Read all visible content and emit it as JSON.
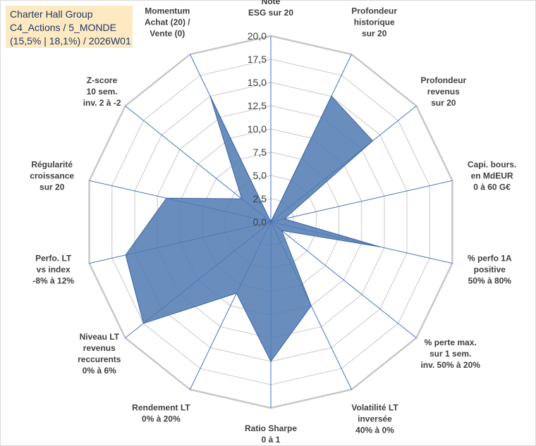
{
  "title_box": {
    "line1": "Charter Hall Group",
    "line2": "C4_Actions / 5_MONDE",
    "line3": "(15,5% | 18,1%) / 2026W01"
  },
  "chart_data": {
    "type": "radar",
    "r_range": [
      0,
      20
    ],
    "r_ticks": [
      "0,0",
      "2,5",
      "5,0",
      "7,5",
      "10,0",
      "12,5",
      "15,0",
      "17,5",
      "20,0"
    ],
    "axes": [
      [
        "Note",
        "ESG sur 20"
      ],
      [
        "Profondeur",
        "historique",
        "sur 20"
      ],
      [
        "Profondeur",
        "revenus",
        "sur 20"
      ],
      [
        "Capi. bours.",
        "en MdEUR",
        "0 à 60 G€"
      ],
      [
        "% perfo 1A",
        "positive",
        "50% à 80%"
      ],
      [
        "% perte max.",
        "sur 1 sem.",
        "inv. 50% à 20%"
      ],
      [
        "Volatilité LT",
        "inversée",
        "40% à 0%"
      ],
      [
        "Ratio Sharpe",
        "0 à 1"
      ],
      [
        "Rendement LT",
        "0% à 20%"
      ],
      [
        "Niveau LT",
        "revenus",
        "reccurents",
        "0% à 6%"
      ],
      [
        "Perfo. LT",
        "vs index",
        "-8% à 12%"
      ],
      [
        "Régularité",
        "croissance",
        "sur 20"
      ],
      [
        "Z-score",
        "10 sem.",
        "inv. 2 à -2"
      ],
      [
        "Momentum",
        "Achat (20) /",
        "Vente (0)"
      ]
    ],
    "series": [
      {
        "name": "Charter Hall Group",
        "values": [
          0,
          15,
          14,
          1.5,
          12,
          1.5,
          10,
          15,
          8.5,
          17.5,
          16,
          11.5,
          4,
          15
        ],
        "color": "#4f7ab3"
      }
    ],
    "colors": {
      "grid": "#c8c8c8",
      "spoke": "#4472c4",
      "fill": "#4f7ab3",
      "title_bg": "#fde9c2",
      "title_text": "#1f3864"
    }
  }
}
